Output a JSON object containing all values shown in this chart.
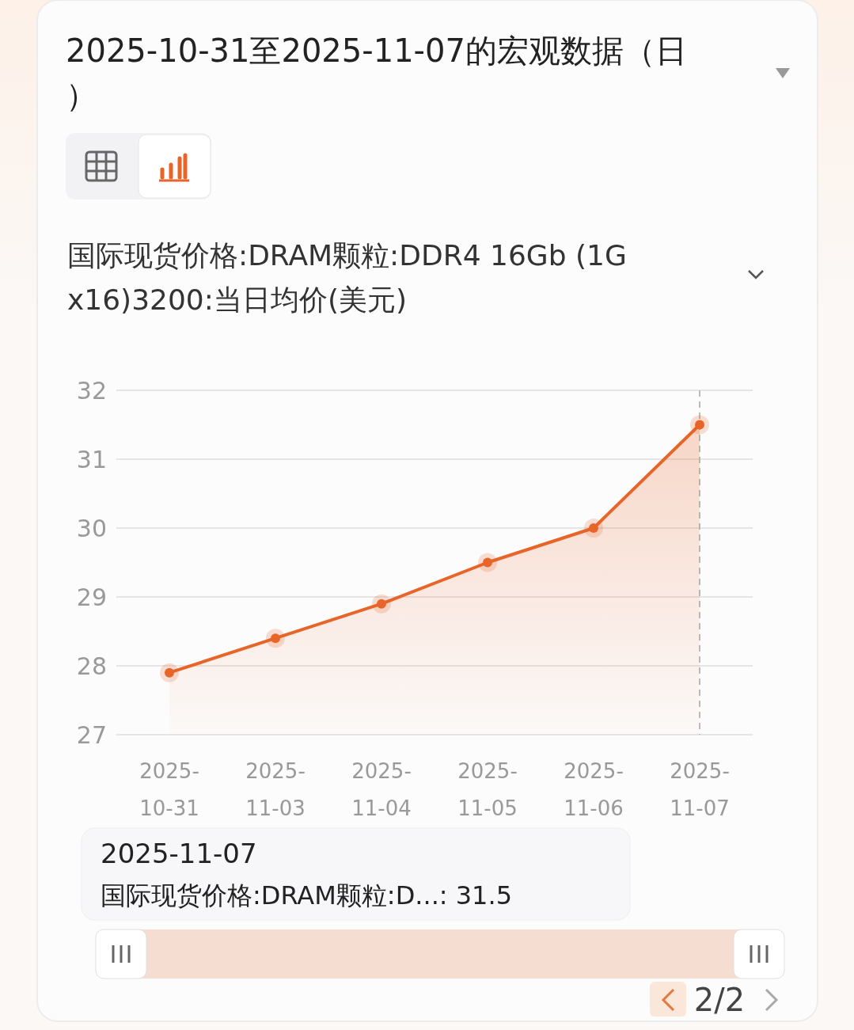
{
  "chart_data": {
    "type": "area",
    "title": "2025-10-31至2025-11-07的宏观数据（日）",
    "subtitle": "国际现货价格:DRAM颗粒:DDR4 16Gb (1Gx16)3200:当日均价(美元)",
    "categories": [
      "2025-10-31",
      "2025-11-03",
      "2025-11-04",
      "2025-11-05",
      "2025-11-06",
      "2025-11-07"
    ],
    "series": [
      {
        "color": "#e8652a",
        "values": [
          27.9,
          28.4,
          28.9,
          29.5,
          30.0,
          31.5
        ]
      }
    ],
    "ylim": [
      27,
      32
    ],
    "yticks": [
      27,
      28,
      29,
      30,
      31,
      32
    ],
    "grid": "y",
    "marker": "circle",
    "line_style": "solid",
    "ref_lines": [
      {
        "axis": "x",
        "value": "2025-11-07",
        "line_style": "dashed",
        "color": "#bbbbbb"
      }
    ],
    "annotations": [
      "2025-11-07",
      "国际现货价格:DRAM颗粒:D...:  31.5",
      "2/2"
    ]
  }
}
